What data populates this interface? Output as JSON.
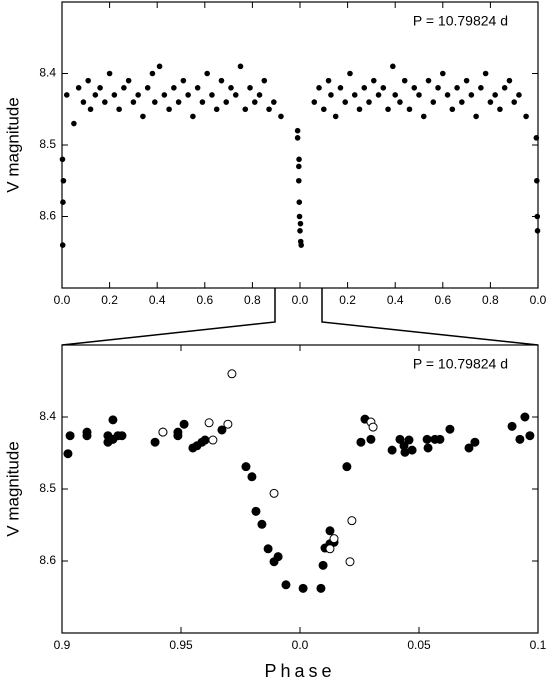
{
  "chart_data": [
    {
      "type": "scatter",
      "annotation": "P = 10.79824 d",
      "ylabel": "V magnitude",
      "invert_y": true,
      "color": "#000000",
      "xlim": [
        0,
        2
      ],
      "ylim": [
        8.3,
        8.7
      ],
      "xticks": [
        {
          "value": 0,
          "label": "0.0"
        },
        {
          "value": 0.2,
          "label": "0.2"
        },
        {
          "value": 0.4,
          "label": "0.4"
        },
        {
          "value": 0.6,
          "label": "0.6"
        },
        {
          "value": 0.8,
          "label": "0.8"
        },
        {
          "value": 1,
          "label": "0.0"
        },
        {
          "value": 1.2,
          "label": "0.2"
        },
        {
          "value": 1.4,
          "label": "0.4"
        },
        {
          "value": 1.6,
          "label": "0.6"
        },
        {
          "value": 1.8,
          "label": "0.8"
        },
        {
          "value": 2,
          "label": "0.0"
        }
      ],
      "yticks": [
        8.4,
        8.5,
        8.6
      ],
      "x": [
        0.002,
        0.004,
        0.006,
        0.003,
        0.02,
        0.05,
        0.07,
        0.09,
        0.11,
        0.12,
        0.14,
        0.16,
        0.18,
        0.2,
        0.22,
        0.24,
        0.26,
        0.28,
        0.3,
        0.32,
        0.34,
        0.36,
        0.38,
        0.39,
        0.41,
        0.43,
        0.45,
        0.47,
        0.49,
        0.51,
        0.53,
        0.55,
        0.57,
        0.59,
        0.61,
        0.63,
        0.65,
        0.67,
        0.69,
        0.71,
        0.73,
        0.75,
        0.77,
        0.79,
        0.81,
        0.83,
        0.85,
        0.87,
        0.89,
        0.92,
        0.99,
        0.99,
        0.995,
        0.995,
        0.996,
        0.997,
        0.998,
        1.0,
        1.002,
        1.003,
        1.005,
        1.06,
        1.08,
        1.1,
        1.12,
        1.13,
        1.15,
        1.17,
        1.19,
        1.21,
        1.23,
        1.25,
        1.27,
        1.29,
        1.31,
        1.33,
        1.35,
        1.37,
        1.39,
        1.4,
        1.42,
        1.44,
        1.46,
        1.48,
        1.5,
        1.52,
        1.54,
        1.56,
        1.58,
        1.6,
        1.62,
        1.64,
        1.66,
        1.68,
        1.7,
        1.72,
        1.74,
        1.76,
        1.78,
        1.8,
        1.82,
        1.84,
        1.86,
        1.88,
        1.9,
        1.92,
        1.95,
        1.993,
        1.995,
        1.997,
        1.998
      ],
      "values": [
        8.52,
        8.58,
        8.55,
        8.64,
        8.43,
        8.47,
        8.42,
        8.44,
        8.41,
        8.45,
        8.43,
        8.42,
        8.44,
        8.4,
        8.43,
        8.45,
        8.42,
        8.41,
        8.44,
        8.43,
        8.46,
        8.42,
        8.4,
        8.44,
        8.39,
        8.43,
        8.45,
        8.42,
        8.44,
        8.41,
        8.43,
        8.46,
        8.42,
        8.44,
        8.4,
        8.43,
        8.45,
        8.41,
        8.44,
        8.42,
        8.43,
        8.39,
        8.45,
        8.42,
        8.44,
        8.43,
        8.41,
        8.45,
        8.44,
        8.46,
        8.48,
        8.49,
        8.53,
        8.55,
        8.52,
        8.58,
        8.6,
        8.62,
        8.61,
        8.635,
        8.64,
        8.44,
        8.42,
        8.45,
        8.41,
        8.43,
        8.46,
        8.42,
        8.44,
        8.4,
        8.43,
        8.45,
        8.42,
        8.44,
        8.41,
        8.43,
        8.42,
        8.45,
        8.39,
        8.43,
        8.44,
        8.41,
        8.45,
        8.42,
        8.43,
        8.46,
        8.41,
        8.44,
        8.42,
        8.4,
        8.43,
        8.45,
        8.42,
        8.44,
        8.41,
        8.43,
        8.46,
        8.42,
        8.4,
        8.44,
        8.43,
        8.45,
        8.42,
        8.41,
        8.44,
        8.43,
        8.46,
        8.49,
        8.55,
        8.6,
        8.62
      ]
    },
    {
      "type": "scatter",
      "annotation": "P = 10.79824 d",
      "ylabel": "V magnitude",
      "xlabel": "Phase",
      "invert_y": true,
      "xlim": [
        -0.1,
        0.1
      ],
      "ylim": [
        8.3,
        8.7
      ],
      "xticks": [
        {
          "value": -0.1,
          "label": "0.9"
        },
        {
          "value": -0.05,
          "label": "0.95"
        },
        {
          "value": 0,
          "label": "0.0"
        },
        0.05,
        0.1
      ],
      "yticks": [
        8.4,
        8.5,
        8.6
      ],
      "series": [
        {
          "marker": "filled",
          "color": "#000000",
          "x": [
            -0.0975,
            -0.0966,
            -0.0895,
            -0.0895,
            -0.0807,
            -0.0807,
            -0.0786,
            -0.0786,
            -0.0765,
            -0.0748,
            -0.0609,
            -0.0576,
            -0.0513,
            -0.0513,
            -0.0487,
            -0.045,
            -0.0433,
            -0.0412,
            -0.0399,
            -0.0328,
            -0.0227,
            -0.0202,
            -0.0185,
            -0.016,
            -0.0134,
            -0.0109,
            -0.0092,
            -0.0059,
            0.0013,
            0.0088,
            0.0097,
            0.0105,
            0.0126,
            0.0126,
            0.0143,
            0.0197,
            0.0256,
            0.0273,
            0.0298,
            0.0387,
            0.042,
            0.0437,
            0.0441,
            0.0458,
            0.0471,
            0.0534,
            0.0538,
            0.0567,
            0.0588,
            0.063,
            0.071,
            0.0735,
            0.0891,
            0.0924,
            0.0945,
            0.0966
          ],
          "values": [
            8.451,
            8.426,
            8.426,
            8.421,
            8.426,
            8.435,
            8.404,
            8.431,
            8.426,
            8.426,
            8.435,
            8.421,
            8.421,
            8.426,
            8.41,
            8.443,
            8.44,
            8.435,
            8.432,
            8.418,
            8.469,
            8.483,
            8.531,
            8.549,
            8.583,
            8.601,
            8.594,
            8.633,
            8.638,
            8.638,
            8.606,
            8.582,
            8.558,
            8.576,
            8.574,
            8.469,
            8.435,
            8.403,
            8.431,
            8.446,
            8.431,
            8.44,
            8.449,
            8.432,
            8.446,
            8.431,
            8.443,
            8.431,
            8.431,
            8.417,
            8.443,
            8.435,
            8.413,
            8.431,
            8.4,
            8.426
          ]
        },
        {
          "marker": "open",
          "color": "#000000",
          "x": [
            -0.0286,
            -0.0382,
            -0.0366,
            -0.0303,
            -0.0576,
            -0.0109,
            0.0126,
            0.0143,
            0.0218,
            0.021,
            0.0298,
            0.0307
          ],
          "values": [
            8.34,
            8.408,
            8.432,
            8.41,
            8.421,
            8.506,
            8.583,
            8.569,
            8.544,
            8.601,
            8.407,
            8.414
          ]
        }
      ]
    }
  ]
}
